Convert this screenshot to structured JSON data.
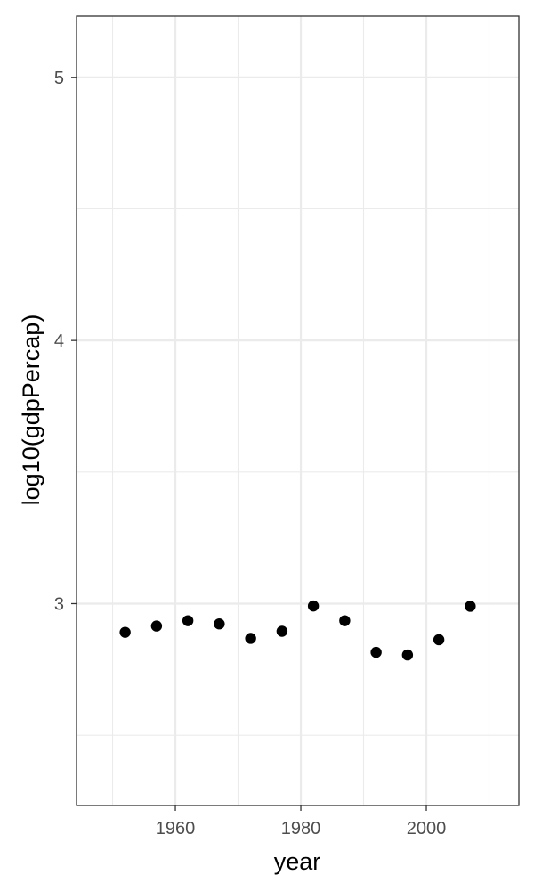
{
  "chart_data": {
    "type": "scatter",
    "title": "",
    "xlabel": "year",
    "ylabel": "log10(gdpPercap)",
    "xlim": [
      1944.25,
      2014.75
    ],
    "ylim": [
      2.233,
      5.233
    ],
    "x_ticks_major": [
      1960,
      1980,
      2000
    ],
    "x_ticks_minor": [
      1950,
      1970,
      1990,
      2010
    ],
    "y_ticks_major": [
      3,
      4,
      5
    ],
    "y_ticks_minor": [
      2.5,
      3.5,
      4.5
    ],
    "x_tick_labels": [
      "1960",
      "1980",
      "2000"
    ],
    "y_tick_labels": [
      "3",
      "4",
      "5"
    ],
    "grid": true,
    "theme": "bw",
    "point_color": "#000000",
    "grid_major_color": "#ebebeb",
    "grid_minor_color": "#ebebeb",
    "panel_border_color": "#333333",
    "series": [
      {
        "x": [
          1952,
          1957,
          1962,
          1967,
          1972,
          1977,
          1982,
          1987,
          1992,
          1997,
          2002,
          2007
        ],
        "y": [
          2.891,
          2.915,
          2.935,
          2.923,
          2.868,
          2.895,
          2.991,
          2.935,
          2.815,
          2.805,
          2.863,
          2.99
        ]
      }
    ]
  }
}
